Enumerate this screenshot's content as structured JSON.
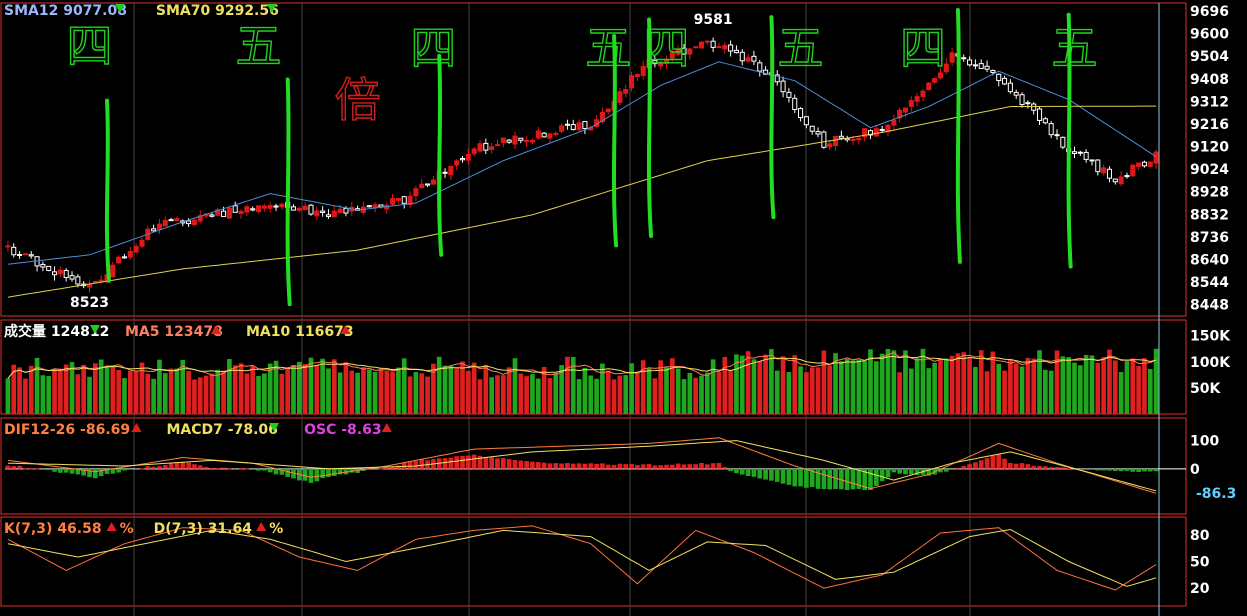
{
  "colors": {
    "up": "#e01818",
    "down": "#ffffff",
    "vol_up": "#e02020",
    "vol_down": "#1fa81f",
    "sma12": "#4a8ed8",
    "sma70": "#e0d050",
    "ma5": "#ff7a5c",
    "ma10": "#f0e060",
    "dif": "#ff8040",
    "macd": "#f0e060",
    "osc": "#e020e0",
    "osc_up": "#e02020",
    "osc_down": "#1fa81f",
    "k_line": "#ff7040",
    "d_line": "#f0e060",
    "panel_border": "#e03030",
    "grid": "#444444",
    "crosshair": "#7fd0e0",
    "annotation_green": "#22dd22",
    "annotation_red": "#e02020",
    "osc_last": "#60d0ff"
  },
  "legends": {
    "price": [
      {
        "label": "SMA12",
        "value": "9077.08",
        "arrow": "down",
        "color": "#9ab8ff"
      },
      {
        "label": "SMA70",
        "value": "9292.56",
        "arrow": "down",
        "color": "#f0e060"
      }
    ],
    "volume": [
      {
        "label": "成交量",
        "value": "124812",
        "arrow": "down",
        "color": "#ffffff"
      },
      {
        "label": "MA5",
        "value": "123478",
        "arrow": "up",
        "color": "#ff8060"
      },
      {
        "label": "MA10",
        "value": "116673",
        "arrow": "up",
        "color": "#f0e060"
      }
    ],
    "macd": [
      {
        "label": "DIF12-26",
        "value": "-86.69",
        "arrow": "up",
        "color": "#ff8040"
      },
      {
        "label": "MACD7",
        "value": "-78.06",
        "arrow": "down",
        "color": "#f0e060"
      },
      {
        "label": "OSC",
        "value": "-8.63",
        "arrow": "up",
        "color": "#e040e0"
      }
    ],
    "kd": [
      {
        "label": "K(7,3)",
        "value": "46.58",
        "arrow": "up",
        "color": "#ff8040",
        "suffix": "%"
      },
      {
        "label": "D(7,3)",
        "value": "31.64",
        "arrow": "up",
        "color": "#f0e060",
        "suffix": "%"
      }
    ]
  },
  "chart_data": [
    {
      "type": "candlestick",
      "panel": "price",
      "y_ticks": [
        "9696",
        "9600",
        "9504",
        "9408",
        "9312",
        "9216",
        "9120",
        "9024",
        "8928",
        "8832",
        "8736",
        "8640",
        "8544",
        "8448"
      ],
      "ylim": [
        8400,
        9730
      ],
      "annotations": [
        {
          "text": "8523",
          "value": 8523,
          "bar": 14
        },
        {
          "text": "9581",
          "value": 9581,
          "bar": 121
        }
      ],
      "key_points": [
        {
          "bar": 0,
          "close": 8690
        },
        {
          "bar": 14,
          "close": 8523
        },
        {
          "bar": 25,
          "close": 8780
        },
        {
          "bar": 45,
          "close": 8880
        },
        {
          "bar": 55,
          "close": 8830
        },
        {
          "bar": 68,
          "close": 8890
        },
        {
          "bar": 80,
          "close": 9110
        },
        {
          "bar": 100,
          "close": 9220
        },
        {
          "bar": 110,
          "close": 9480
        },
        {
          "bar": 121,
          "close": 9560
        },
        {
          "bar": 130,
          "close": 9440
        },
        {
          "bar": 140,
          "close": 9130
        },
        {
          "bar": 150,
          "close": 9200
        },
        {
          "bar": 162,
          "close": 9500
        },
        {
          "bar": 170,
          "close": 9420
        },
        {
          "bar": 180,
          "close": 9150
        },
        {
          "bar": 190,
          "close": 8980
        },
        {
          "bar": 197,
          "close": 9077
        }
      ],
      "sma12_points": [
        {
          "bar": 0,
          "value": 8620
        },
        {
          "bar": 14,
          "value": 8660
        },
        {
          "bar": 30,
          "value": 8800
        },
        {
          "bar": 45,
          "value": 8920
        },
        {
          "bar": 60,
          "value": 8850
        },
        {
          "bar": 70,
          "value": 8880
        },
        {
          "bar": 85,
          "value": 9060
        },
        {
          "bar": 100,
          "value": 9200
        },
        {
          "bar": 112,
          "value": 9380
        },
        {
          "bar": 122,
          "value": 9480
        },
        {
          "bar": 135,
          "value": 9400
        },
        {
          "bar": 148,
          "value": 9200
        },
        {
          "bar": 158,
          "value": 9290
        },
        {
          "bar": 170,
          "value": 9440
        },
        {
          "bar": 182,
          "value": 9320
        },
        {
          "bar": 197,
          "value": 9077
        }
      ],
      "sma70_points": [
        {
          "bar": 0,
          "value": 8480
        },
        {
          "bar": 30,
          "value": 8600
        },
        {
          "bar": 60,
          "value": 8680
        },
        {
          "bar": 90,
          "value": 8830
        },
        {
          "bar": 120,
          "value": 9060
        },
        {
          "bar": 150,
          "value": 9180
        },
        {
          "bar": 172,
          "value": 9290
        },
        {
          "bar": 197,
          "value": 9292
        }
      ]
    },
    {
      "type": "bar",
      "panel": "volume",
      "y_ticks": [
        "150K",
        "100K",
        "50K"
      ],
      "ylim": [
        0,
        180000
      ],
      "last_value": 124812
    },
    {
      "type": "bar",
      "panel": "macd",
      "y_ticks": [
        "100",
        "0",
        "-86.3"
      ],
      "ylim": [
        -160,
        180
      ],
      "dif_points": [
        {
          "bar": 0,
          "value": 30
        },
        {
          "bar": 15,
          "value": -10
        },
        {
          "bar": 30,
          "value": 40
        },
        {
          "bar": 42,
          "value": 20
        },
        {
          "bar": 52,
          "value": -30
        },
        {
          "bar": 65,
          "value": 10
        },
        {
          "bar": 80,
          "value": 70
        },
        {
          "bar": 95,
          "value": 80
        },
        {
          "bar": 110,
          "value": 90
        },
        {
          "bar": 122,
          "value": 110
        },
        {
          "bar": 135,
          "value": 10
        },
        {
          "bar": 148,
          "value": -70
        },
        {
          "bar": 158,
          "value": -20
        },
        {
          "bar": 170,
          "value": 90
        },
        {
          "bar": 180,
          "value": 20
        },
        {
          "bar": 197,
          "value": -86.69
        }
      ],
      "macd_points": [
        {
          "bar": 0,
          "value": 20
        },
        {
          "bar": 20,
          "value": 10
        },
        {
          "bar": 35,
          "value": 30
        },
        {
          "bar": 55,
          "value": 0
        },
        {
          "bar": 70,
          "value": 10
        },
        {
          "bar": 90,
          "value": 60
        },
        {
          "bar": 110,
          "value": 80
        },
        {
          "bar": 125,
          "value": 100
        },
        {
          "bar": 140,
          "value": 30
        },
        {
          "bar": 152,
          "value": -40
        },
        {
          "bar": 162,
          "value": 20
        },
        {
          "bar": 172,
          "value": 60
        },
        {
          "bar": 185,
          "value": -10
        },
        {
          "bar": 197,
          "value": -78.06
        }
      ],
      "last_osc": -8.63
    },
    {
      "type": "line",
      "panel": "kd",
      "y_ticks": [
        "80",
        "50",
        "20"
      ],
      "ylim": [
        0,
        100
      ],
      "k_points": [
        {
          "bar": 0,
          "value": 75
        },
        {
          "bar": 10,
          "value": 40
        },
        {
          "bar": 20,
          "value": 70
        },
        {
          "bar": 30,
          "value": 88
        },
        {
          "bar": 40,
          "value": 85
        },
        {
          "bar": 50,
          "value": 55
        },
        {
          "bar": 60,
          "value": 40
        },
        {
          "bar": 70,
          "value": 75
        },
        {
          "bar": 80,
          "value": 85
        },
        {
          "bar": 90,
          "value": 90
        },
        {
          "bar": 100,
          "value": 70
        },
        {
          "bar": 108,
          "value": 25
        },
        {
          "bar": 118,
          "value": 85
        },
        {
          "bar": 128,
          "value": 60
        },
        {
          "bar": 140,
          "value": 20
        },
        {
          "bar": 150,
          "value": 35
        },
        {
          "bar": 160,
          "value": 82
        },
        {
          "bar": 170,
          "value": 88
        },
        {
          "bar": 180,
          "value": 40
        },
        {
          "bar": 190,
          "value": 18
        },
        {
          "bar": 197,
          "value": 46.58
        }
      ],
      "d_points": [
        {
          "bar": 0,
          "value": 70
        },
        {
          "bar": 12,
          "value": 55
        },
        {
          "bar": 25,
          "value": 72
        },
        {
          "bar": 35,
          "value": 85
        },
        {
          "bar": 45,
          "value": 75
        },
        {
          "bar": 58,
          "value": 50
        },
        {
          "bar": 70,
          "value": 65
        },
        {
          "bar": 85,
          "value": 85
        },
        {
          "bar": 100,
          "value": 78
        },
        {
          "bar": 110,
          "value": 40
        },
        {
          "bar": 120,
          "value": 72
        },
        {
          "bar": 130,
          "value": 68
        },
        {
          "bar": 142,
          "value": 30
        },
        {
          "bar": 152,
          "value": 38
        },
        {
          "bar": 165,
          "value": 78
        },
        {
          "bar": 172,
          "value": 86
        },
        {
          "bar": 182,
          "value": 50
        },
        {
          "bar": 192,
          "value": 22
        },
        {
          "bar": 197,
          "value": 31.64
        }
      ]
    }
  ],
  "handwriting": [
    {
      "text": "四",
      "bar": 14,
      "value": 9650,
      "color": "#22dd22"
    },
    {
      "text": "五",
      "bar": 43,
      "value": 9650,
      "color": "#22dd22"
    },
    {
      "text": "倍",
      "bar": 60,
      "value": 9420,
      "color": "#e02020"
    },
    {
      "text": "四",
      "bar": 73,
      "value": 9640,
      "color": "#22dd22"
    },
    {
      "text": "五",
      "bar": 103,
      "value": 9640,
      "color": "#22dd22"
    },
    {
      "text": "四",
      "bar": 113,
      "value": 9640,
      "color": "#22dd22"
    },
    {
      "text": "五",
      "bar": 136,
      "value": 9640,
      "color": "#22dd22"
    },
    {
      "text": "四",
      "bar": 157,
      "value": 9640,
      "color": "#22dd22"
    },
    {
      "text": "五",
      "bar": 183,
      "value": 9640,
      "color": "#22dd22"
    }
  ],
  "vertical_marks": [
    {
      "bar": 17,
      "value_top": 9315,
      "value_bottom": 8550
    },
    {
      "bar": 48,
      "value_top": 9405,
      "value_bottom": 8450
    },
    {
      "bar": 74,
      "value_top": 9505,
      "value_bottom": 8660
    },
    {
      "bar": 104,
      "value_top": 9590,
      "value_bottom": 8700
    },
    {
      "bar": 110,
      "value_top": 9660,
      "value_bottom": 8740
    },
    {
      "bar": 131,
      "value_top": 9670,
      "value_bottom": 8820
    },
    {
      "bar": 163,
      "value_top": 9700,
      "value_bottom": 8630
    },
    {
      "bar": 182,
      "value_top": 9680,
      "value_bottom": 8610
    }
  ]
}
